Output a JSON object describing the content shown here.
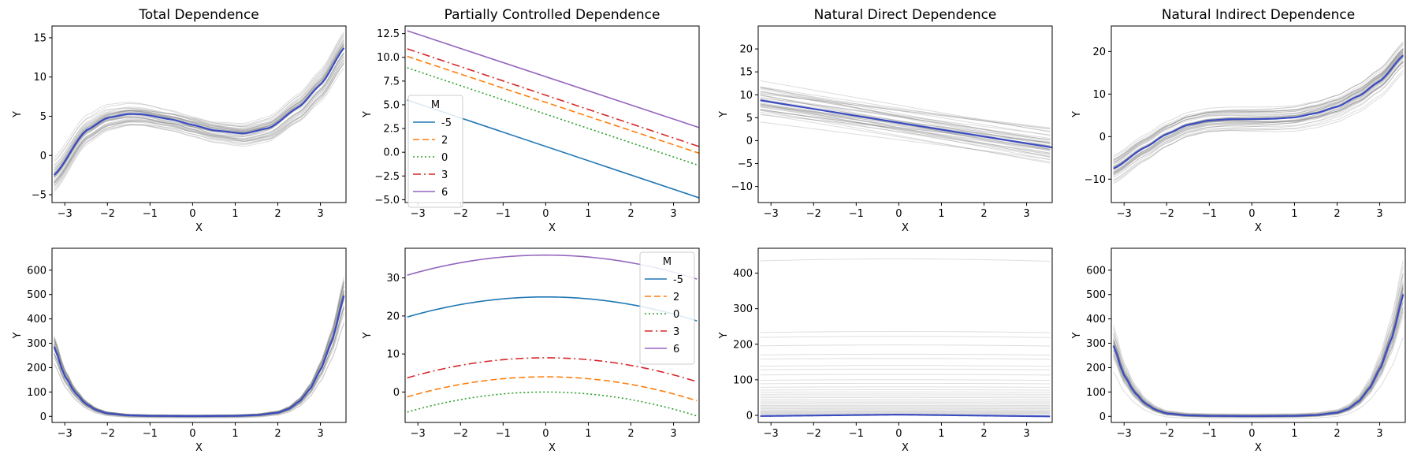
{
  "figure": {
    "background": "#ffffff"
  },
  "chart_data": [
    {
      "id": "total-top",
      "type": "line",
      "title": "Total Dependence",
      "xlabel": "X",
      "ylabel": "Y",
      "xlim": [
        -3.3,
        3.6
      ],
      "ylim": [
        -6,
        16.5
      ],
      "xticks": [
        -3,
        -2,
        -1,
        0,
        1,
        2,
        3
      ],
      "yticks": [
        -5,
        0,
        5,
        10,
        15
      ],
      "ytick_labels": [
        "−5",
        "0",
        "5",
        "10",
        "15"
      ],
      "series": [
        {
          "name": "mean",
          "role": "mean",
          "color": "#3b4cc0",
          "x": [
            -3.25,
            -2.5,
            -2.0,
            -1.5,
            -1.2,
            -0.5,
            0.0,
            0.5,
            1.2,
            1.8,
            2.5,
            3.0,
            3.6
          ],
          "y": [
            -2.5,
            3.2,
            4.8,
            5.3,
            5.25,
            4.6,
            3.9,
            3.2,
            2.8,
            3.5,
            6.2,
            9.0,
            14.0
          ]
        }
      ],
      "band": {
        "color": "#808080",
        "spread": 1.2,
        "samples": 40
      }
    },
    {
      "id": "pcd-top",
      "type": "line",
      "title": "Partially Controlled Dependence",
      "xlabel": "X",
      "ylabel": "Y",
      "xlim": [
        -3.3,
        3.6
      ],
      "ylim": [
        -5.3,
        13.3
      ],
      "xticks": [
        -3,
        -2,
        -1,
        0,
        1,
        2,
        3
      ],
      "yticks": [
        -5.0,
        -2.5,
        0.0,
        2.5,
        5.0,
        7.5,
        10.0,
        12.5
      ],
      "ytick_labels": [
        "−5.0",
        "−2.5",
        "0.0",
        "2.5",
        "5.0",
        "7.5",
        "10.0",
        "12.5"
      ],
      "legend": {
        "title": "M",
        "position": "left",
        "labels": [
          "-5",
          "2",
          "0",
          "3",
          "6"
        ]
      },
      "series": [
        {
          "name": "-5",
          "color": "#1f77b4",
          "dash": "",
          "x": [
            -3.25,
            3.6
          ],
          "y": [
            5.5,
            -4.8
          ]
        },
        {
          "name": "2",
          "color": "#ff7f0e",
          "dash": "8,4",
          "x": [
            -3.25,
            3.6
          ],
          "y": [
            10.1,
            -0.1
          ]
        },
        {
          "name": "0",
          "color": "#2ca02c",
          "dash": "2,3",
          "x": [
            -3.25,
            3.6
          ],
          "y": [
            8.9,
            -1.4
          ]
        },
        {
          "name": "3",
          "color": "#d62728",
          "dash": "10,4,2,4",
          "x": [
            -3.25,
            3.6
          ],
          "y": [
            10.9,
            0.6
          ]
        },
        {
          "name": "6",
          "color": "#9467bd",
          "dash": "",
          "x": [
            -3.25,
            3.6
          ],
          "y": [
            12.8,
            2.6
          ]
        }
      ]
    },
    {
      "id": "nde-top",
      "type": "line",
      "title": "Natural Direct Dependence",
      "xlabel": "X",
      "ylabel": "Y",
      "xlim": [
        -3.3,
        3.6
      ],
      "ylim": [
        -13.5,
        25
      ],
      "xticks": [
        -3,
        -2,
        -1,
        0,
        1,
        2,
        3
      ],
      "yticks": [
        -10,
        -5,
        0,
        5,
        10,
        15,
        20
      ],
      "ytick_labels": [
        "−10",
        "−5",
        "0",
        "5",
        "10",
        "15",
        "20"
      ],
      "series": [
        {
          "name": "mean",
          "role": "mean",
          "color": "#3b4cc0",
          "x": [
            -3.25,
            3.6
          ],
          "y": [
            8.8,
            -1.5
          ]
        }
      ],
      "band": {
        "color": "#808080",
        "spread": 3.0,
        "samples": 40
      }
    },
    {
      "id": "nid-top",
      "type": "line",
      "title": "Natural Indirect Dependence",
      "xlabel": "X",
      "ylabel": "Y",
      "xlim": [
        -3.3,
        3.6
      ],
      "ylim": [
        -15.5,
        26
      ],
      "xticks": [
        -3,
        -2,
        -1,
        0,
        1,
        2,
        3
      ],
      "yticks": [
        -10,
        0,
        10,
        20
      ],
      "ytick_labels": [
        "−10",
        "0",
        "10",
        "20"
      ],
      "series": [
        {
          "name": "mean",
          "role": "mean",
          "color": "#3b4cc0",
          "x": [
            -3.25,
            -2.5,
            -2.0,
            -1.5,
            -1.0,
            -0.5,
            0.0,
            0.5,
            1.0,
            1.5,
            2.0,
            2.5,
            3.0,
            3.6
          ],
          "y": [
            -7.5,
            -2.5,
            0.6,
            2.8,
            3.8,
            4.1,
            4.1,
            4.2,
            4.5,
            5.5,
            7.0,
            9.5,
            13.0,
            19.5
          ]
        }
      ],
      "band": {
        "color": "#808080",
        "spread": 2.5,
        "samples": 40
      }
    },
    {
      "id": "total-bottom",
      "type": "line",
      "title": "",
      "xlabel": "X",
      "ylabel": "Y",
      "xlim": [
        -3.3,
        3.6
      ],
      "ylim": [
        -25,
        690
      ],
      "xticks": [
        -3,
        -2,
        -1,
        0,
        1,
        2,
        3
      ],
      "yticks": [
        0,
        100,
        200,
        300,
        400,
        500,
        600
      ],
      "ytick_labels": [
        "0",
        "100",
        "200",
        "300",
        "400",
        "500",
        "600"
      ],
      "series": [
        {
          "name": "mean",
          "role": "mean",
          "color": "#3b4cc0",
          "x": [
            -3.25,
            -3.0,
            -2.75,
            -2.5,
            -2.25,
            -2.0,
            -1.5,
            -1.0,
            0.0,
            1.0,
            1.5,
            2.0,
            2.25,
            2.5,
            2.75,
            3.0,
            3.25,
            3.6
          ],
          "y": [
            285,
            165,
            95,
            50,
            25,
            12,
            4,
            2,
            1,
            2,
            5,
            15,
            30,
            60,
            110,
            190,
            300,
            520
          ]
        }
      ],
      "band": {
        "color": "#808080",
        "spread": 0.16,
        "mode": "scale",
        "samples": 40
      }
    },
    {
      "id": "pcd-bottom",
      "type": "line",
      "title": "",
      "xlabel": "X",
      "ylabel": "Y",
      "xlim": [
        -3.3,
        3.6
      ],
      "ylim": [
        -8,
        37.8
      ],
      "xticks": [
        -3,
        -2,
        -1,
        0,
        1,
        2,
        3
      ],
      "yticks": [
        0,
        10,
        20,
        30
      ],
      "ytick_labels": [
        "0",
        "10",
        "20",
        "30"
      ],
      "legend": {
        "title": "M",
        "position": "top-right",
        "labels": [
          "-5",
          "2",
          "0",
          "3",
          "6"
        ]
      },
      "series": [
        {
          "name": "-5",
          "color": "#1f77b4",
          "dash": "",
          "quad": [
            25,
            0.5
          ]
        },
        {
          "name": "2",
          "color": "#ff7f0e",
          "dash": "8,4",
          "quad": [
            4,
            0.5
          ]
        },
        {
          "name": "0",
          "color": "#2ca02c",
          "dash": "2,3",
          "quad": [
            0,
            0.5
          ]
        },
        {
          "name": "3",
          "color": "#d62728",
          "dash": "10,4,2,4",
          "quad": [
            9,
            0.5
          ]
        },
        {
          "name": "6",
          "color": "#9467bd",
          "dash": "",
          "quad": [
            36,
            0.5
          ]
        }
      ]
    },
    {
      "id": "nde-bottom",
      "type": "line",
      "title": "",
      "xlabel": "X",
      "ylabel": "Y",
      "xlim": [
        -3.3,
        3.6
      ],
      "ylim": [
        -20,
        470
      ],
      "xticks": [
        -3,
        -2,
        -1,
        0,
        1,
        2,
        3
      ],
      "yticks": [
        0,
        100,
        200,
        300,
        400
      ],
      "ytick_labels": [
        "0",
        "100",
        "200",
        "300",
        "400"
      ],
      "series": [
        {
          "name": "mean",
          "role": "mean",
          "color": "#3b4cc0",
          "x": [
            -3.25,
            0.0,
            3.6
          ],
          "y": [
            -2,
            2,
            -3
          ]
        }
      ],
      "band": {
        "color": "#a0a0a0",
        "mode": "flat",
        "levels": [
          440,
          236,
          222,
          198,
          172,
          160,
          140,
          130,
          115,
          100,
          90,
          80,
          72,
          66,
          60,
          55,
          50,
          45,
          40,
          36,
          32,
          28,
          25,
          22,
          19,
          16,
          13,
          11,
          9,
          7,
          5,
          3
        ]
      }
    },
    {
      "id": "nid-bottom",
      "type": "line",
      "title": "",
      "xlabel": "X",
      "ylabel": "Y",
      "xlim": [
        -3.3,
        3.6
      ],
      "ylim": [
        -25,
        690
      ],
      "xticks": [
        -3,
        -2,
        -1,
        0,
        1,
        2,
        3
      ],
      "yticks": [
        0,
        100,
        200,
        300,
        400,
        500,
        600
      ],
      "ytick_labels": [
        "0",
        "100",
        "200",
        "300",
        "400",
        "500",
        "600"
      ],
      "series": [
        {
          "name": "mean",
          "role": "mean",
          "color": "#3b4cc0",
          "x": [
            -3.25,
            -3.0,
            -2.75,
            -2.5,
            -2.25,
            -2.0,
            -1.5,
            -1.0,
            0.0,
            1.0,
            1.5,
            2.0,
            2.25,
            2.5,
            2.75,
            3.0,
            3.25,
            3.6
          ],
          "y": [
            290,
            168,
            97,
            52,
            26,
            12,
            4,
            2,
            1,
            2,
            5,
            15,
            30,
            60,
            112,
            192,
            305,
            525
          ]
        }
      ],
      "band": {
        "color": "#808080",
        "spread": 0.16,
        "mode": "scale",
        "samples": 40
      }
    }
  ]
}
